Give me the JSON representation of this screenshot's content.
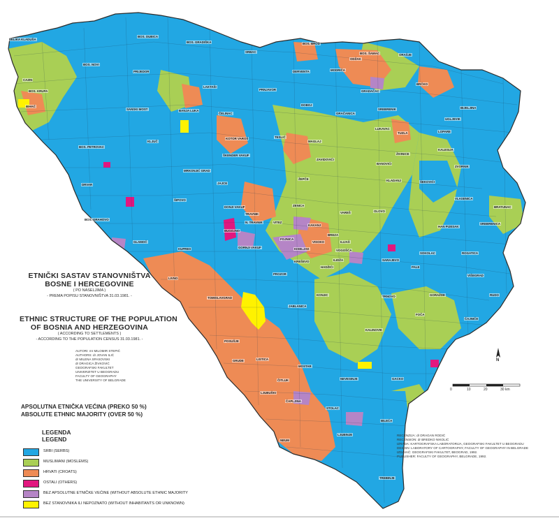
{
  "colors": {
    "serbs": "#22a7e3",
    "muslims": "#a9cf55",
    "croats": "#ee8b55",
    "others": "#e2177f",
    "no_majority": "#b585c6",
    "uninhabited": "#fff200",
    "outside": "#ffffff"
  },
  "title_sr": {
    "line1": "ETNIČKI SASTAV STANOVNIŠTVA",
    "line2": "BOSNE I HERCEGOVINE",
    "line3": "( PO NASELJIMA )",
    "line4": "- PREMA POPISU STANOVNIŠTVA 31.03.1981. -"
  },
  "title_en": {
    "line1": "ETHNIC STRUCTURE OF THE POPULATION",
    "line2": "OF BOSNIA AND HERZEGOVINA",
    "line3": "( ACCORDING TO SETTLEMENTS )",
    "line4": "- ACCORDING TO THE POPULATION CENSUS 31.03.1981. -"
  },
  "credits_left": [
    "AUTORI:       mr MILOMIR STEPIĆ",
    "AUTHORS:      dr JOVAN ILIĆ",
    "                     dr MILENA SPASOVSKI",
    "                     dr DRAGICA ŽIVKOVIĆ",
    "",
    "GEOGRAFSKI FAKULTET",
    "UNIVERZITET U BEOGRADU",
    "",
    "FACULTY OF GEOGRAPHY",
    "THE UNIVERSITY OF BELGRADE"
  ],
  "majority_title": {
    "sr": "APSOLUTNA ETNIČKA VEĆINA (PREKO 50 %)",
    "en": "ABSOLUTE ETHNIC MAJORITY (OVER 50 %)"
  },
  "legend_title": {
    "sr": "LEGENDA",
    "en": "LEGEND"
  },
  "legend": [
    {
      "color": "#22a7e3",
      "label": "SRBI (SERBS)"
    },
    {
      "color": "#a9cf55",
      "label": "MUSLIMANI (MOSLEMS)"
    },
    {
      "color": "#ee8b55",
      "label": "HRVATI (CROATS)"
    },
    {
      "color": "#e2177f",
      "label": "OSTALI (OTHERS)"
    },
    {
      "color": "#b585c6",
      "label": "BEZ APSOLUTNE ETNIČKE VEĆINE (WITHOUT ABSOLUTE ETHNIC MAJORITY"
    },
    {
      "color": "#fff200",
      "label": "BEZ STANOVNIKA ILI NEPOZNATO (WITHOUT INHABITANTS OR UNKNOWN)"
    }
  ],
  "credits_right": [
    "RECENZIJA:   dr DRAGAN RODIĆ",
    "RECENSION:  dr BREDKO NIKOLIĆ",
    "",
    "IZRADA: KARTOGRAFSKA LABORATORIJA, GEOGRAFSKI FAKULTET U BEOGRADU",
    "DESIGN: LABORATORY OF CARTOGRAPHY, FACULTY OF GEOGRAPHY IN BELGRADE",
    "",
    "IZDAVAČ: GEOGRAFSKI FAKULTET, BEOGRAD, 1992.",
    "PUBLISHER: FACULTY OF GEOGRAPHY, BELGRADE, 1992."
  ],
  "scale": {
    "ticks": [
      "0",
      "10",
      "20",
      "30 km"
    ],
    "zero_label": "5"
  },
  "north_label": "N",
  "places": [
    "VELIKA KLADUŠA",
    "BOS. DUBICA",
    "BOS. GRADIŠKA",
    "SRBAC",
    "BOS. BROD",
    "BOS. ŠAMAC",
    "ORAŠJE",
    "BOS. NOVI",
    "CAZIN",
    "PRIJEDOR",
    "LAKTAŠI",
    "PRNJAVOR",
    "DERVENTA",
    "MODRIČA",
    "ODŽAK",
    "BRČKO",
    "BIHAĆ",
    "BOS. KRUPA",
    "SANSKI MOST",
    "BANJA LUKA",
    "ČELINAC",
    "DOBOJ",
    "GRADAČAC",
    "GRAČANICA",
    "SREBRENIK",
    "BIJELJINA",
    "UGLJEVIK",
    "LOPARE",
    "TUZLA",
    "KOTOR VAROŠ",
    "TESLIĆ",
    "MAGLAJ",
    "LUKAVAC",
    "KALESIJA",
    "ZVORNIK",
    "BOS. PETROVAC",
    "KLJUČ",
    "ŠKENDER VAKUF",
    "ZAVIDOVIĆI",
    "BANOVIĆI",
    "ŽIVINICE",
    "MRKONJIĆ GRAD",
    "JAJCE",
    "ŽEPČE",
    "KLADANJ",
    "ŠEKOVIĆI",
    "VLASENICA",
    "BRATUNAC",
    "DRVAR",
    "ŠIPOVO",
    "DONJI VAKUF",
    "TRAVNIK",
    "ZENICA",
    "VAREŠ",
    "OLOVO",
    "SREBRENICA",
    "BOS. GRAHOVO",
    "BUGOJNO",
    "N. TRAVNIK",
    "VITEZ",
    "KAKANJ",
    "BREZA",
    "HAN PIJESAK",
    "GLAMOČ",
    "KUPRES",
    "FOJNICA",
    "KISELJAK",
    "VISOKO",
    "ILIJAŠ",
    "VOGOŠĆA",
    "SOKOLAC",
    "ROGATICA",
    "GORNJI VAKUF",
    "KREŠEVO",
    "HADŽIĆI",
    "ILIDŽA",
    "SARAJEVO",
    "PALE",
    "VIŠEGRAD",
    "LIVNO",
    "PROZOR",
    "TOMISLAVGRAD",
    "KONJIC",
    "TRNOVO",
    "GORAŽDE",
    "RUDO",
    "JABLANICA",
    "FOČA",
    "ČAJNIČE",
    "POSUŠJE",
    "KALINOVIK",
    "GRUDE",
    "LISTICA",
    "MOSTAR",
    "NEVESINJE",
    "GACKO",
    "LJUBUŠKI",
    "ČITLUK",
    "ČAPLJINA",
    "STOLAC",
    "BILEĆA",
    "NEUM",
    "LJUBINJE",
    "TREBINJE"
  ]
}
